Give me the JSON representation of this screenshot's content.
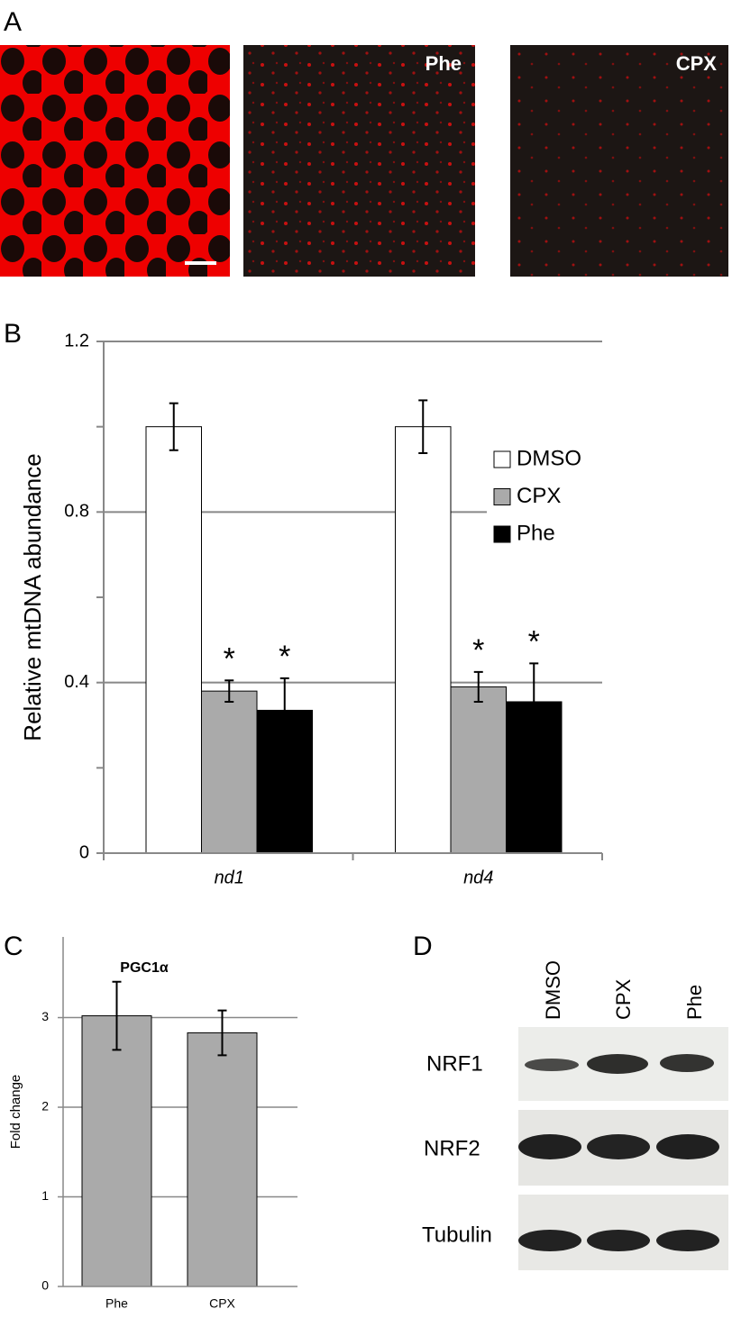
{
  "panel_a": {
    "letter": "A",
    "labels": [
      "Phe",
      "CPX"
    ]
  },
  "chart_data": [
    {
      "type": "bar",
      "panel": "B",
      "ylabel": "Relative mtDNA abundance",
      "categories": [
        "nd1",
        "nd4"
      ],
      "series": [
        {
          "name": "DMSO",
          "color": "#ffffff",
          "values": [
            1.0,
            1.0
          ],
          "errors": [
            0.055,
            0.062
          ]
        },
        {
          "name": "CPX",
          "color": "#aaaaaa",
          "values": [
            0.38,
            0.39
          ],
          "errors": [
            0.025,
            0.035
          ],
          "annotations": [
            "*",
            "*"
          ]
        },
        {
          "name": "Phe",
          "color": "#000000",
          "values": [
            0.335,
            0.355
          ],
          "errors": [
            0.075,
            0.09
          ],
          "annotations": [
            "*",
            "*"
          ]
        }
      ],
      "ylim": [
        0,
        1.2
      ],
      "yticks": [
        0,
        0.4,
        0.8,
        1.2
      ],
      "minor_yticks": [
        0.2,
        0.6,
        1.0
      ],
      "grid": true,
      "legend": "right"
    },
    {
      "type": "bar",
      "panel": "C",
      "title": "PGC1α",
      "ylabel": "Fold change",
      "categories": [
        "Phe",
        "CPX"
      ],
      "values": [
        3.02,
        2.83
      ],
      "errors": [
        0.38,
        0.25
      ],
      "color": "#aaaaaa",
      "ylim": [
        0,
        3.9
      ],
      "yticks": [
        0,
        1,
        2,
        3
      ],
      "grid": true
    }
  ],
  "panel_d": {
    "letter": "D",
    "columns": [
      "DMSO",
      "CPX",
      "Phe"
    ],
    "rows": [
      "NRF1",
      "NRF2",
      "Tubulin"
    ]
  }
}
